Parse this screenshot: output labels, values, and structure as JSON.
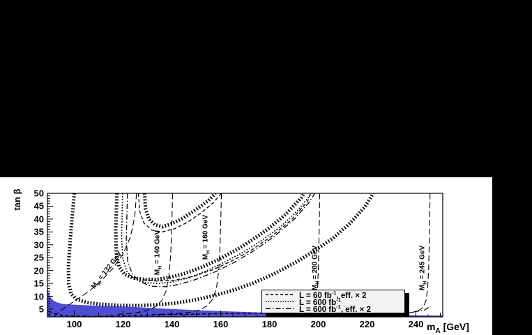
{
  "figure": {
    "outer_background": "#000000",
    "panel_background": "#ffffff",
    "line_color": "#000000",
    "excluded_region_color": "#4f4cd6"
  },
  "chart_data": {
    "type": "line",
    "title": "",
    "xlabel_pre": "m",
    "xlabel_sub": "A",
    "xlabel_post": " [GeV]",
    "ylabel": "tan β",
    "xlim": [
      89,
      251
    ],
    "ylim": [
      2,
      50
    ],
    "x_major_ticks": [
      100,
      120,
      140,
      160,
      180,
      200,
      220,
      240
    ],
    "x_minor_step": 5,
    "y_major_ticks": [
      5,
      10,
      15,
      20,
      25,
      30,
      35,
      40,
      45,
      50
    ],
    "y_minor_step": 1,
    "grid": false,
    "legend": {
      "position": "bottom-right",
      "entries": [
        {
          "style": "dashed",
          "pre": "L = 60 fb",
          "sup": "-1",
          "post": ", eff. × 2"
        },
        {
          "style": "dotted",
          "pre": "L = 600 fb",
          "sup": "-1",
          "post": ""
        },
        {
          "style": "dashdot",
          "pre": "L = 600 fb",
          "sup": "-1",
          "post": ", eff. × 2"
        }
      ]
    },
    "excluded_region": {
      "color": "#4f4cd6",
      "points": [
        [
          89,
          13.2
        ],
        [
          89.6,
          11
        ],
        [
          90.4,
          9.4
        ],
        [
          91.5,
          8.3
        ],
        [
          93,
          7.6
        ],
        [
          95,
          7.1
        ],
        [
          98,
          6.8
        ],
        [
          102,
          6.6
        ],
        [
          107,
          6.45
        ],
        [
          113,
          6.25
        ],
        [
          120,
          6.0
        ],
        [
          127,
          5.7
        ],
        [
          134,
          5.35
        ],
        [
          141,
          5.0
        ],
        [
          149,
          4.65
        ],
        [
          158,
          4.3
        ],
        [
          168,
          3.95
        ],
        [
          178,
          3.65
        ],
        [
          188,
          3.45
        ],
        [
          198,
          3.3
        ],
        [
          208,
          3.1
        ],
        [
          218,
          2.95
        ],
        [
          228,
          2.8
        ],
        [
          238,
          2.65
        ],
        [
          246,
          2.55
        ],
        [
          251,
          2.5
        ],
        [
          251,
          2
        ],
        [
          89,
          2
        ]
      ]
    },
    "series": [
      {
        "name": "reach-contour-outer",
        "style": "hatch",
        "points": [
          [
            100,
            50
          ],
          [
            98.5,
            34
          ],
          [
            97.6,
            22
          ],
          [
            97.7,
            15
          ],
          [
            98.7,
            11
          ],
          [
            101,
            8.8
          ],
          [
            105,
            7.6
          ],
          [
            111,
            6.9
          ],
          [
            118,
            6.5
          ],
          [
            126,
            6.4
          ],
          [
            134,
            6.7
          ],
          [
            142,
            7.4
          ],
          [
            150,
            8.7
          ],
          [
            158,
            10.4
          ],
          [
            166,
            12.6
          ],
          [
            174,
            15.4
          ],
          [
            182,
            18.8
          ],
          [
            190,
            22.8
          ],
          [
            198,
            27.4
          ],
          [
            206,
            32.6
          ],
          [
            213,
            38.4
          ],
          [
            219,
            44.6
          ],
          [
            222.5,
            50
          ]
        ]
      },
      {
        "name": "reach-contour-inner",
        "style": "hatch",
        "points": [
          [
            117.5,
            50
          ],
          [
            117,
            36
          ],
          [
            117.2,
            27
          ],
          [
            118.3,
            21.5
          ],
          [
            120.5,
            18.6
          ],
          [
            124,
            17.1
          ],
          [
            129,
            16.5
          ],
          [
            134,
            16.6
          ],
          [
            139,
            17.3
          ],
          [
            145,
            18.8
          ],
          [
            152,
            21.2
          ],
          [
            159,
            24.2
          ],
          [
            166,
            27.8
          ],
          [
            173,
            31.9
          ],
          [
            180,
            36.6
          ],
          [
            187,
            42.2
          ],
          [
            193,
            48.2
          ],
          [
            194.2,
            50
          ]
        ]
      },
      {
        "name": "reach-contour-narrow-u",
        "style": "hatch",
        "points": [
          [
            128.8,
            50
          ],
          [
            129.2,
            44
          ],
          [
            130.6,
            40
          ],
          [
            133,
            37.8
          ],
          [
            136.2,
            37
          ],
          [
            140,
            38.2
          ],
          [
            145,
            40.6
          ],
          [
            150,
            43.8
          ],
          [
            155,
            47.2
          ],
          [
            157.8,
            50
          ]
        ]
      },
      {
        "name": "contour-dotted-600",
        "style": "dot",
        "points": [
          [
            119.8,
            50
          ],
          [
            119.4,
            33
          ],
          [
            119.9,
            24.5
          ],
          [
            121.5,
            19.8
          ],
          [
            124.5,
            16.8
          ],
          [
            129,
            15.3
          ],
          [
            134.5,
            15
          ],
          [
            140,
            15.5
          ],
          [
            147,
            17.2
          ],
          [
            154,
            19.8
          ],
          [
            161,
            23
          ],
          [
            169,
            27
          ],
          [
            177,
            31.8
          ],
          [
            185,
            37.4
          ],
          [
            192,
            43.8
          ],
          [
            197.3,
            50
          ]
        ]
      },
      {
        "name": "contour-dashdot-600x2",
        "style": "dashdot",
        "points": [
          [
            121.8,
            50
          ],
          [
            121.3,
            32
          ],
          [
            121.9,
            23.5
          ],
          [
            123.8,
            18.6
          ],
          [
            127,
            15.6
          ],
          [
            131.5,
            13.9
          ],
          [
            137,
            13.7
          ],
          [
            143,
            14.6
          ],
          [
            150,
            16.6
          ],
          [
            158,
            19.6
          ],
          [
            166,
            23.4
          ],
          [
            174,
            27.9
          ],
          [
            182,
            33.3
          ],
          [
            190,
            39.8
          ],
          [
            196,
            46.2
          ],
          [
            198.6,
            50
          ]
        ]
      },
      {
        "name": "contour-dashed-60x2-upper",
        "style": "dash",
        "points": [
          [
            126.3,
            50
          ],
          [
            126.8,
            43
          ],
          [
            128.6,
            38.4
          ],
          [
            131.8,
            35.7
          ],
          [
            136,
            35
          ],
          [
            141,
            36.2
          ],
          [
            146.5,
            38.8
          ],
          [
            152,
            42.4
          ],
          [
            157,
            46.4
          ],
          [
            160.3,
            50
          ]
        ]
      },
      {
        "name": "contour-dashed-60x2-diagonal",
        "style": "dash",
        "points": [
          [
            128,
            16.4
          ],
          [
            134,
            15.9
          ],
          [
            141,
            16.2
          ],
          [
            149,
            17.8
          ],
          [
            157,
            20.4
          ],
          [
            165,
            23.9
          ],
          [
            173,
            28.2
          ],
          [
            181,
            33.4
          ],
          [
            189,
            39.7
          ],
          [
            195.6,
            46.8
          ],
          [
            196.8,
            50
          ]
        ]
      },
      {
        "name": "contour-dashed-low",
        "style": "dash",
        "points": [
          [
            89.5,
            4.2
          ],
          [
            93,
            2.9
          ],
          [
            98,
            2.35
          ],
          [
            106,
            2.15
          ],
          [
            116,
            2.3
          ],
          [
            128,
            2.6
          ],
          [
            142,
            2.95
          ],
          [
            158,
            3.2
          ],
          [
            174,
            3.4
          ],
          [
            190,
            3.65
          ],
          [
            206,
            4
          ],
          [
            220,
            4.5
          ],
          [
            230,
            5.1
          ],
          [
            236,
            5.9
          ]
        ]
      },
      {
        "name": "contour-dashdot-low",
        "style": "dashdot",
        "points": [
          [
            196,
            2.3
          ],
          [
            212,
            2.55
          ],
          [
            226,
            2.95
          ],
          [
            237,
            3.6
          ],
          [
            243.5,
            4.6
          ],
          [
            246,
            6.2
          ]
        ]
      },
      {
        "name": "mass-contour-132",
        "style": "longdash",
        "points": [
          [
            125.5,
            50
          ],
          [
            124.8,
            41
          ],
          [
            123,
            33
          ],
          [
            120,
            26.5
          ],
          [
            116,
            21
          ],
          [
            111.3,
            16.2
          ],
          [
            106.5,
            12.3
          ],
          [
            102,
            9.3
          ],
          [
            98.3,
            7
          ],
          [
            95.5,
            5.2
          ],
          [
            93.5,
            3.8
          ],
          [
            92.3,
            2.8
          ],
          [
            91.8,
            2
          ]
        ]
      },
      {
        "name": "mass-contour-140",
        "style": "longdash",
        "points": [
          [
            140.3,
            50
          ],
          [
            139.9,
            36
          ],
          [
            139.5,
            26
          ],
          [
            138.8,
            18
          ],
          [
            137.6,
            12
          ],
          [
            135.8,
            8.2
          ],
          [
            133,
            5.8
          ],
          [
            129.5,
            4.4
          ],
          [
            125.5,
            3.6
          ],
          [
            121.5,
            3.2
          ],
          [
            118,
            3
          ]
        ]
      },
      {
        "name": "mass-contour-160",
        "style": "longdash",
        "points": [
          [
            160.3,
            50
          ],
          [
            160,
            38
          ],
          [
            159.7,
            28
          ],
          [
            159.2,
            20
          ],
          [
            158.3,
            13.5
          ],
          [
            156.8,
            9
          ],
          [
            154.5,
            6.3
          ],
          [
            151.5,
            4.7
          ],
          [
            147.5,
            3.8
          ],
          [
            142.5,
            3.3
          ],
          [
            137,
            3.05
          ],
          [
            132,
            2.95
          ]
        ]
      },
      {
        "name": "mass-contour-200",
        "style": "longdash",
        "points": [
          [
            200.6,
            50
          ],
          [
            200.4,
            38
          ],
          [
            200.2,
            28
          ],
          [
            200,
            20
          ],
          [
            199.7,
            13
          ],
          [
            199.2,
            8.5
          ],
          [
            198.2,
            5.7
          ],
          [
            196.5,
            4.2
          ],
          [
            194,
            3.4
          ],
          [
            191,
            3.05
          ],
          [
            188,
            2.9
          ]
        ]
      },
      {
        "name": "mass-contour-245",
        "style": "longdash",
        "points": [
          [
            245.8,
            50
          ],
          [
            245.6,
            38
          ],
          [
            245.4,
            28
          ],
          [
            245.2,
            20
          ],
          [
            244.8,
            13
          ],
          [
            244.2,
            8.6
          ],
          [
            243.2,
            6
          ],
          [
            241.4,
            4.6
          ],
          [
            238.8,
            3.8
          ],
          [
            235.5,
            3.3
          ],
          [
            232,
            3.05
          ],
          [
            229,
            2.9
          ]
        ]
      }
    ],
    "annotations": [
      {
        "pre": "M",
        "sub": "H",
        "post": " = 132 GeV",
        "mA": 113.5,
        "tanb": 20,
        "rotation": -52
      },
      {
        "pre": "M",
        "sub": "H",
        "post": " = 140 GeV",
        "mA": 134.5,
        "tanb": 27,
        "rotation": -90
      },
      {
        "pre": "M",
        "sub": "H",
        "post": " = 160 GeV",
        "mA": 154,
        "tanb": 33,
        "rotation": -90
      },
      {
        "pre": "M",
        "sub": "H",
        "post": " = 200 GeV",
        "mA": 199,
        "tanb": 21,
        "rotation": -90
      },
      {
        "pre": "M",
        "sub": "H",
        "post": " = 245 GeV",
        "mA": 243,
        "tanb": 21,
        "rotation": -90
      }
    ]
  }
}
